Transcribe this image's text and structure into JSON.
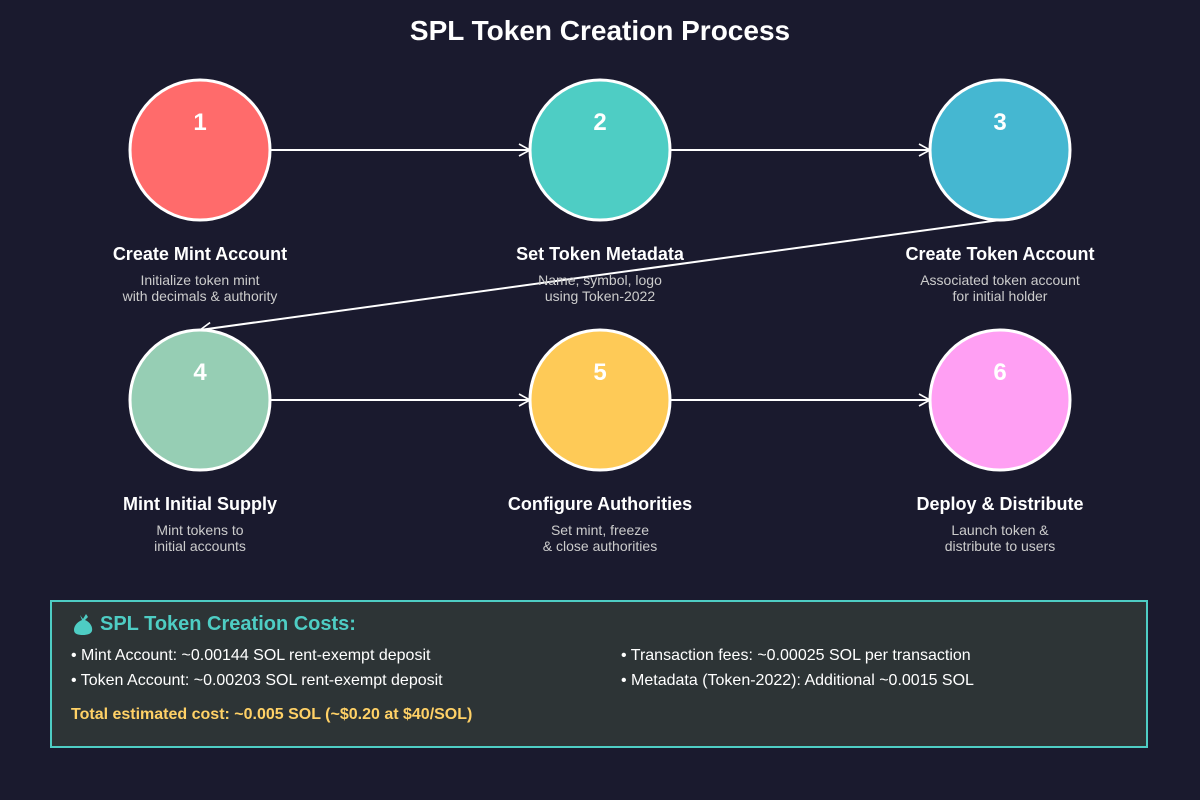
{
  "title": "SPL Token Creation Process",
  "colors": {
    "background": "#1a1a2e",
    "step1": "#ff6b6b",
    "step2": "#4ecdc4",
    "step3": "#45b7d1",
    "step4": "#96ceb4",
    "step5": "#feca57",
    "step6": "#ff9ff3",
    "accent": "#4ecdc4",
    "total": "#ffd166"
  },
  "steps": [
    {
      "number": "1",
      "title": "Create Mint Account",
      "desc1": "Initialize token mint",
      "desc2": "with decimals & authority"
    },
    {
      "number": "2",
      "title": "Set Token Metadata",
      "desc1": "Name, symbol, logo",
      "desc2": "using Token-2022"
    },
    {
      "number": "3",
      "title": "Create Token Account",
      "desc1": "Associated token account",
      "desc2": "for initial holder"
    },
    {
      "number": "4",
      "title": "Mint Initial Supply",
      "desc1": "Mint tokens to",
      "desc2": "initial accounts"
    },
    {
      "number": "5",
      "title": "Configure Authorities",
      "desc1": "Set mint, freeze",
      "desc2": "& close authorities"
    },
    {
      "number": "6",
      "title": "Deploy & Distribute",
      "desc1": "Launch token &",
      "desc2": "distribute to users"
    }
  ],
  "costs": {
    "icon": "money-bag-icon",
    "title": "SPL Token Creation Costs:",
    "items": [
      "• Mint Account: ~0.00144 SOL rent-exempt deposit",
      "• Token Account: ~0.00203 SOL rent-exempt deposit",
      "• Transaction fees: ~0.00025 SOL per transaction",
      "• Metadata (Token-2022): Additional ~0.0015 SOL"
    ],
    "total": "Total estimated cost: ~0.005 SOL (~$0.20 at $40/SOL)"
  }
}
